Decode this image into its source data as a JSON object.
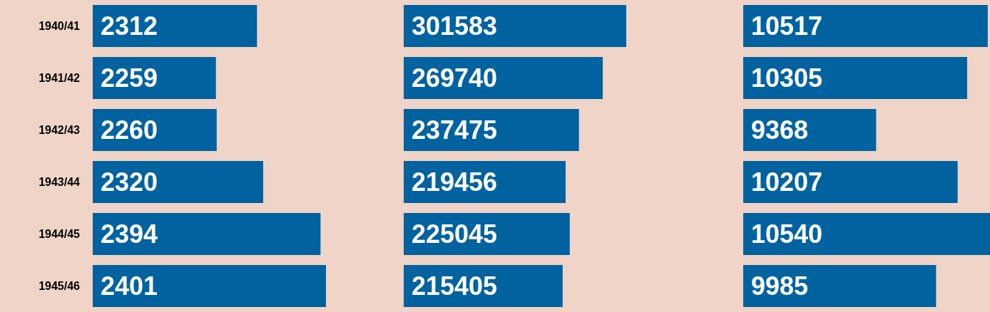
{
  "chart_data": [
    {
      "type": "bar",
      "orientation": "horizontal",
      "categories": [
        "1940/41",
        "1941/42",
        "1942/43",
        "1943/44",
        "1944/45",
        "1945/46"
      ],
      "values": [
        2312,
        2259,
        2260,
        2320,
        2394,
        2401
      ],
      "color": "#00629f",
      "data_labels": true,
      "xlim": [
        2100,
        2401
      ],
      "tick_labels": "y"
    },
    {
      "type": "bar",
      "orientation": "horizontal",
      "categories": [
        "1940/41",
        "1941/42",
        "1942/43",
        "1943/44",
        "1944/45",
        "1945/46"
      ],
      "values": [
        301583,
        269740,
        237475,
        219456,
        225045,
        215405
      ],
      "color": "#00629f",
      "data_labels": true,
      "xlim": [
        0,
        301583
      ],
      "tick_labels": false
    },
    {
      "type": "bar",
      "orientation": "horizontal",
      "categories": [
        "1940/41",
        "1941/42",
        "1942/43",
        "1943/44",
        "1944/45",
        "1945/46"
      ],
      "values": [
        10517,
        10305,
        9368,
        10207,
        10540,
        9985
      ],
      "color": "#00629f",
      "data_labels": true,
      "xlim": [
        8000,
        10540
      ],
      "tick_labels": false
    }
  ]
}
